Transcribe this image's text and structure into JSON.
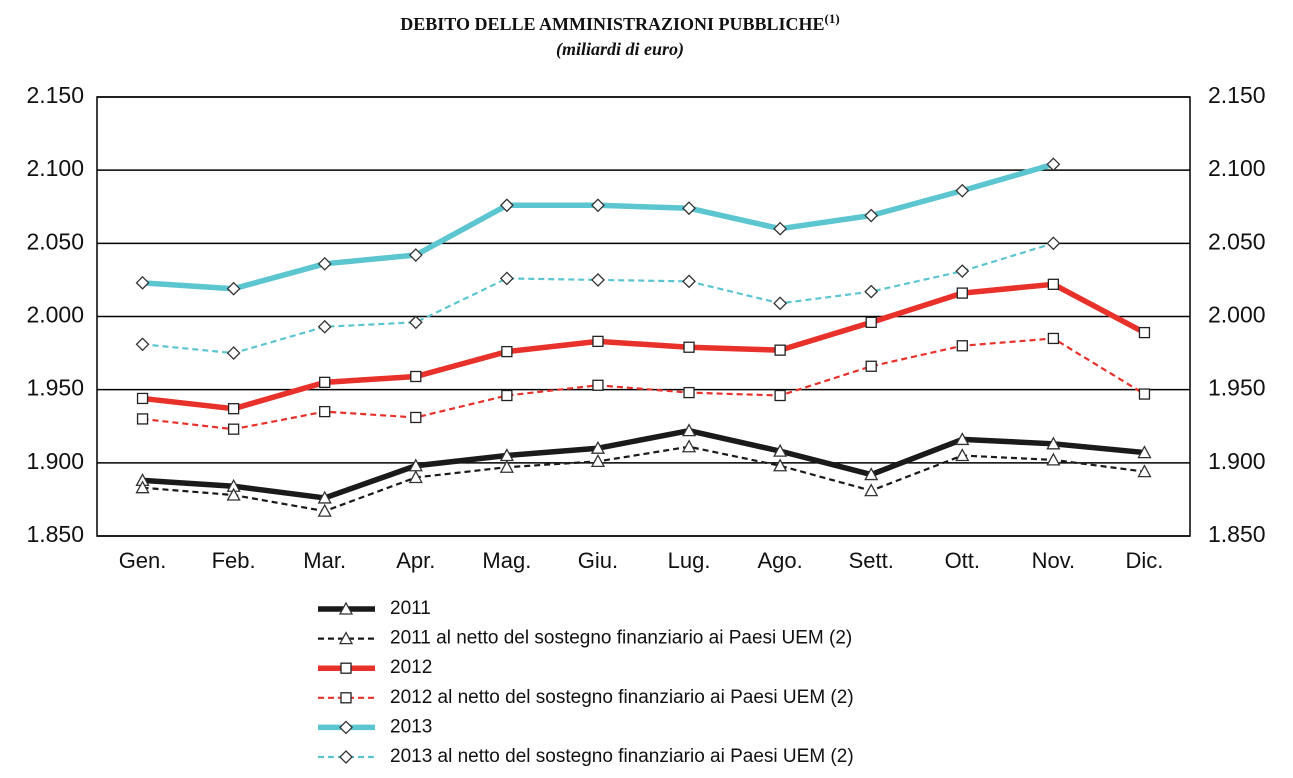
{
  "chart_data": {
    "type": "line",
    "title": "DEBITO DELLE AMMINISTRAZIONI PUBBLICHE",
    "title_note": "(1)",
    "subtitle": "(miliardi di euro)",
    "categories": [
      "Gen.",
      "Feb.",
      "Mar.",
      "Apr.",
      "Mag.",
      "Giu.",
      "Lug.",
      "Ago.",
      "Sett.",
      "Ott.",
      "Nov.",
      "Dic."
    ],
    "ylim": [
      1850,
      2150
    ],
    "yticks": [
      {
        "value": 1850,
        "label": "1.850"
      },
      {
        "value": 1900,
        "label": "1.900"
      },
      {
        "value": 1950,
        "label": "1.950"
      },
      {
        "value": 2000,
        "label": "2.000"
      },
      {
        "value": 2050,
        "label": "2.050"
      },
      {
        "value": 2100,
        "label": "2.100"
      },
      {
        "value": 2150,
        "label": "2.150"
      }
    ],
    "y2lim": [
      1850,
      2150
    ],
    "y2ticks": [
      {
        "value": 1850,
        "label": "1.850"
      },
      {
        "value": 1900,
        "label": "1.900"
      },
      {
        "value": 1950,
        "label": "1.950"
      },
      {
        "value": 2000,
        "label": "2.000"
      },
      {
        "value": 2050,
        "label": "2.050"
      },
      {
        "value": 2100,
        "label": "2.100"
      },
      {
        "value": 2150,
        "label": "2.150"
      }
    ],
    "grid": true,
    "legend": "bottom",
    "series": [
      {
        "name": "2011",
        "color": "#1a1a1a",
        "dashed": false,
        "marker": "triangle",
        "values": [
          1888,
          1884,
          1876,
          1898,
          1905,
          1910,
          1922,
          1908,
          1892,
          1916,
          1913,
          1907
        ]
      },
      {
        "name": "2011 al netto del sostegno finanziario ai Paesi UEM (2)",
        "color": "#1a1a1a",
        "dashed": true,
        "marker": "triangle",
        "values": [
          1883,
          1878,
          1867,
          1890,
          1897,
          1901,
          1911,
          1898,
          1881,
          1905,
          1902,
          1894
        ]
      },
      {
        "name": "2012",
        "color": "#e8312a",
        "dashed": false,
        "marker": "square",
        "values": [
          1944,
          1937,
          1955,
          1959,
          1976,
          1983,
          1979,
          1977,
          1996,
          2016,
          2022,
          1989
        ]
      },
      {
        "name": "2012 al netto del sostegno finanziario ai Paesi UEM (2)",
        "color": "#e8312a",
        "dashed": true,
        "marker": "square",
        "values": [
          1930,
          1923,
          1935,
          1931,
          1946,
          1953,
          1948,
          1946,
          1966,
          1980,
          1985,
          1947
        ]
      },
      {
        "name": "2013",
        "color": "#5cc6d0",
        "dashed": false,
        "marker": "diamond",
        "values": [
          2023,
          2019,
          2036,
          2042,
          2076,
          2076,
          2074,
          2060,
          2069,
          2086,
          2104,
          null
        ]
      },
      {
        "name": "2013 al netto del sostegno finanziario ai Paesi UEM (2)",
        "color": "#5cc6d0",
        "dashed": true,
        "marker": "diamond",
        "values": [
          1981,
          1975,
          1993,
          1996,
          2026,
          2025,
          2024,
          2009,
          2017,
          2031,
          2050,
          null
        ]
      }
    ]
  }
}
